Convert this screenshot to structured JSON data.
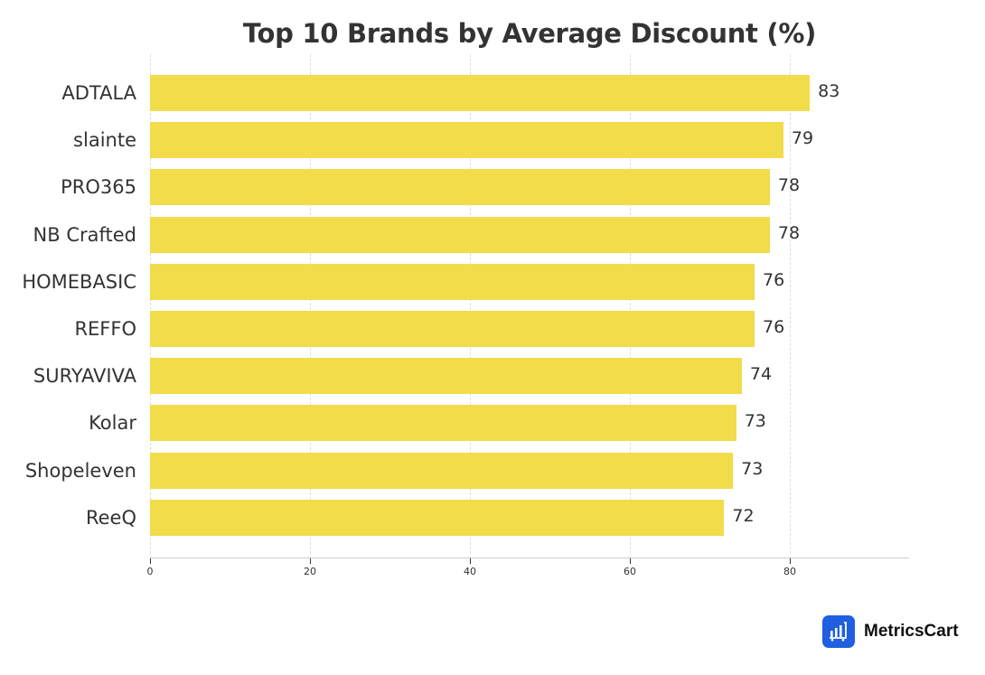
{
  "chart_data": {
    "type": "bar",
    "orientation": "horizontal",
    "title": "Top 10 Brands by Average Discount (%)",
    "xlabel": "",
    "ylabel": "",
    "categories": [
      "ADTALA",
      "slainte",
      "PRO365",
      "NB Crafted",
      "HOMEBASIC",
      "REFFO",
      "SURYAVIVA",
      "Kolar",
      "Shopeleven",
      "ReeQ"
    ],
    "values": [
      82.5,
      79.2,
      77.5,
      77.5,
      75.6,
      75.6,
      74.0,
      73.3,
      72.9,
      71.8
    ],
    "value_labels": [
      "83",
      "79",
      "78",
      "78",
      "76",
      "76",
      "74",
      "73",
      "73",
      "72"
    ],
    "xlim": [
      0,
      95
    ],
    "xticks": [
      0,
      20,
      40,
      60,
      80
    ],
    "grid": {
      "x": true,
      "style": "dashed"
    },
    "legend": null,
    "bar_color": "#F2DC4A"
  },
  "branding": {
    "name": "MetricsCart",
    "icon": "bar-chart-cart-icon",
    "icon_color": "#1F5FE0"
  },
  "colors": {
    "text": "#333333",
    "grid": "#dddddd",
    "axis": "#cccccc"
  }
}
